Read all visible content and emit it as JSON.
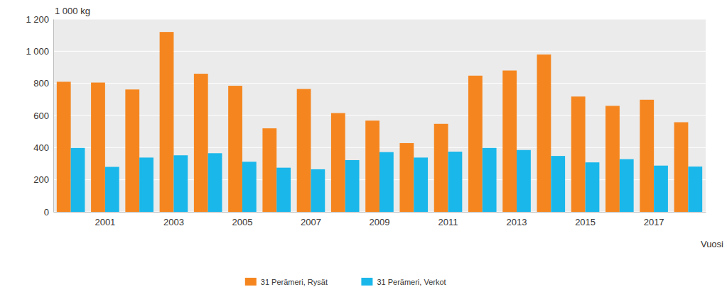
{
  "chart_data": {
    "type": "bar",
    "y_label": "1 000 kg",
    "x_label": "Vuosi",
    "categories": [
      null,
      "2001",
      null,
      "2003",
      null,
      "2005",
      null,
      "2007",
      null,
      "2009",
      null,
      "2011",
      null,
      "2013",
      null,
      "2015",
      null,
      "2017",
      null
    ],
    "series": [
      {
        "name": "31 Perämeri, Rysät",
        "color": "#f5861f",
        "values": [
          810,
          805,
          762,
          1120,
          860,
          785,
          520,
          765,
          615,
          568,
          428,
          548,
          848,
          880,
          980,
          718,
          660,
          698,
          558
        ]
      },
      {
        "name": "31 Perämeri, Verkot",
        "color": "#1ab7ea",
        "values": [
          398,
          280,
          338,
          352,
          365,
          312,
          275,
          265,
          322,
          372,
          338,
          375,
          398,
          385,
          348,
          308,
          328,
          288,
          282
        ]
      }
    ],
    "ylim": [
      0,
      1200
    ],
    "yticks": [
      0,
      200,
      400,
      600,
      800,
      {
        "value": 1000,
        "label": "1 000"
      },
      {
        "value": 1200,
        "label": "1 200"
      }
    ],
    "grid": true,
    "legend": "bottom"
  }
}
